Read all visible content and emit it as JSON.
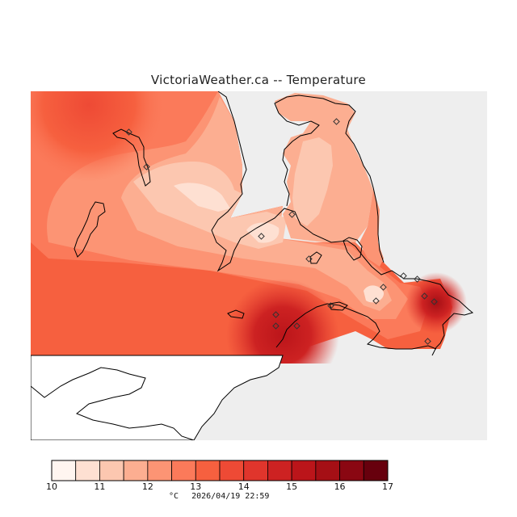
{
  "title": "VictoriaWeather.ca  --  Temperature",
  "legend": {
    "unit": "°C",
    "timestamp": "2026/04/19 22:59",
    "tick_labels": [
      "10",
      "11",
      "12",
      "13",
      "14",
      "15",
      "16",
      "17"
    ],
    "bins": [
      {
        "from": 10.0,
        "to": 10.5,
        "color": "#fff5f0"
      },
      {
        "from": 10.5,
        "to": 11.0,
        "color": "#fee0d2"
      },
      {
        "from": 11.0,
        "to": 11.5,
        "color": "#fcc7b0"
      },
      {
        "from": 11.5,
        "to": 12.0,
        "color": "#fcae91"
      },
      {
        "from": 12.0,
        "to": 12.5,
        "color": "#fc9474"
      },
      {
        "from": 12.5,
        "to": 13.0,
        "color": "#fb7a5a"
      },
      {
        "from": 13.0,
        "to": 13.5,
        "color": "#f6603f"
      },
      {
        "from": 13.5,
        "to": 14.0,
        "color": "#ee4a35"
      },
      {
        "from": 14.0,
        "to": 14.5,
        "color": "#e0352c"
      },
      {
        "from": 14.5,
        "to": 15.0,
        "color": "#cd2222"
      },
      {
        "from": 15.0,
        "to": 15.5,
        "color": "#bb151a"
      },
      {
        "from": 15.5,
        "to": 16.0,
        "color": "#a50f15"
      },
      {
        "from": 16.0,
        "to": 16.5,
        "color": "#8a0712"
      },
      {
        "from": 16.5,
        "to": 17.0,
        "color": "#67000d"
      }
    ]
  },
  "colors": {
    "nodata": "#eeeeee",
    "coast": "#000000",
    "station_marker": "#333333"
  },
  "stations": {
    "count": 17,
    "marker": "diamond"
  }
}
